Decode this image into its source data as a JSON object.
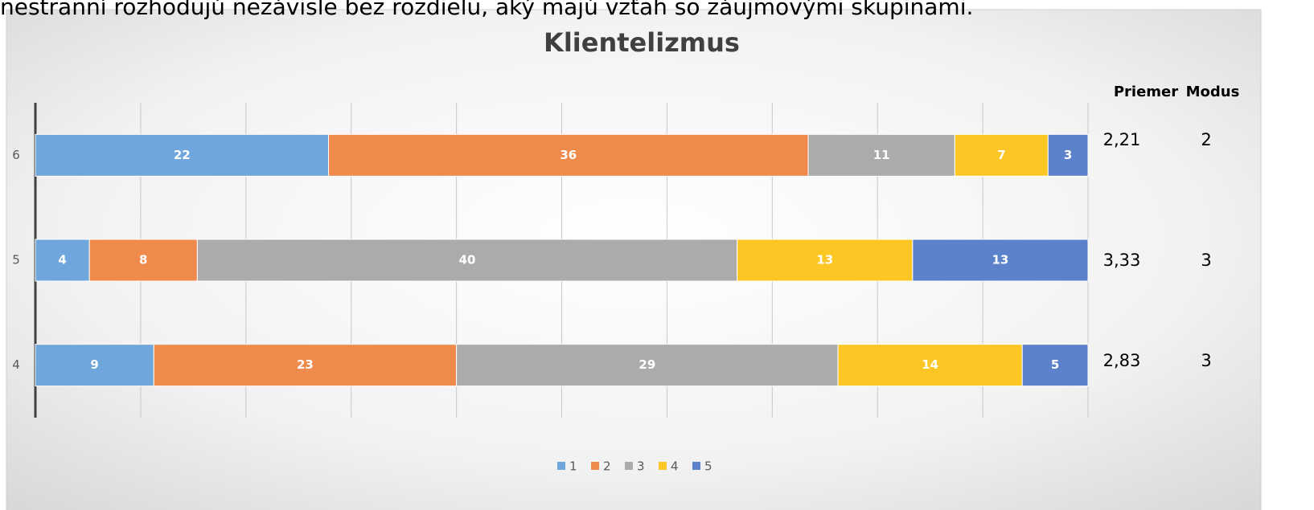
{
  "header": {
    "text": "nestranní rozhodujú nezávisle bez rozdielu, aký majú vzťah so záujmovými skupinami."
  },
  "chart_data": {
    "type": "bar",
    "orientation": "horizontal",
    "stacked": "percent",
    "title": "Klientelizmus",
    "categories": [
      "6",
      "5",
      "4"
    ],
    "series": [
      {
        "name": "1",
        "color": "#6fa6db",
        "values": [
          22,
          4,
          9
        ]
      },
      {
        "name": "2",
        "color": "#ef8a4d",
        "values": [
          36,
          8,
          23
        ]
      },
      {
        "name": "3",
        "color": "#ababab",
        "values": [
          11,
          40,
          29
        ]
      },
      {
        "name": "4",
        "color": "#fcc624",
        "values": [
          7,
          13,
          14
        ]
      },
      {
        "name": "5",
        "color": "#5b82ca",
        "values": [
          3,
          13,
          5
        ]
      }
    ],
    "grid": true,
    "legend": "bottom"
  },
  "stats": {
    "headers": [
      "Priemer",
      "Modus"
    ],
    "rows": [
      [
        "2,21",
        "2"
      ],
      [
        "3,33",
        "3"
      ],
      [
        "2,83",
        "3"
      ]
    ]
  }
}
